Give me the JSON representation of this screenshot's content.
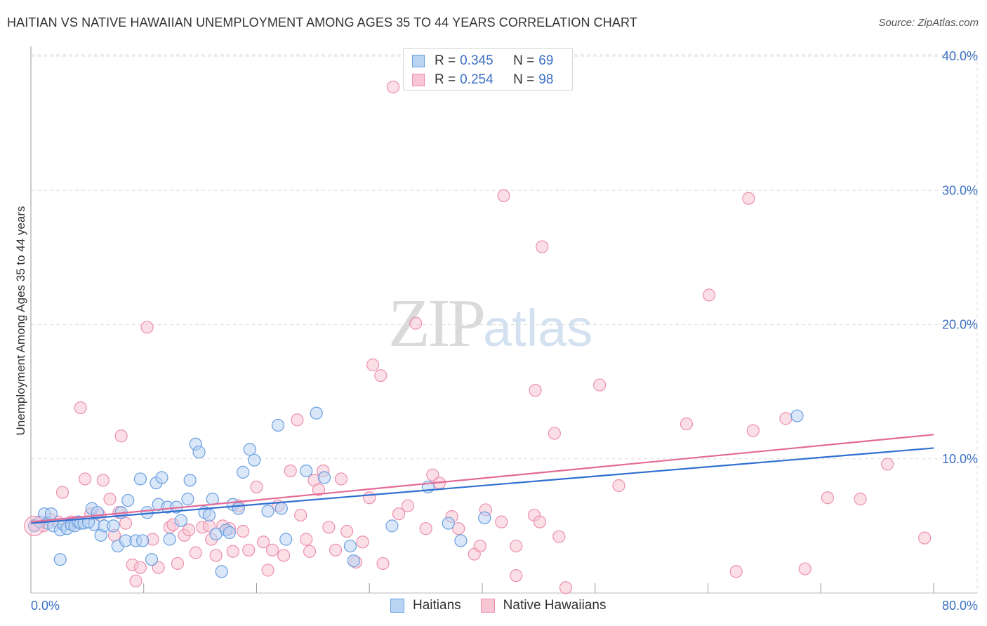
{
  "header": {
    "title": "HAITIAN VS NATIVE HAWAIIAN UNEMPLOYMENT AMONG AGES 35 TO 44 YEARS CORRELATION CHART",
    "source": "Source: ZipAtlas.com"
  },
  "watermark": {
    "zip": "ZIP",
    "atlas": "atlas"
  },
  "stats": {
    "rows": [
      {
        "r_label": "R =",
        "r_value": "0.345",
        "n_label": "N =",
        "n_value": "69"
      },
      {
        "r_label": "R =",
        "r_value": "0.254",
        "n_label": "N =",
        "n_value": "98"
      }
    ]
  },
  "legend": {
    "items": [
      "Haitians",
      "Native Hawaiians"
    ]
  },
  "colors": {
    "haitians_fill": "#b9d3f3",
    "haitians_stroke": "#6a9fe0",
    "haitians_line": "#2f6fd1",
    "hawaiians_fill": "#f8c5d4",
    "hawaiians_stroke": "#ec8fad",
    "hawaiians_line": "#e36a96",
    "tick_text": "#3a6fc4",
    "grid": "#dddddd"
  },
  "chart_data": {
    "type": "scatter",
    "title": "HAITIAN VS NATIVE HAWAIIAN UNEMPLOYMENT AMONG AGES 35 TO 44 YEARS CORRELATION CHART",
    "xlabel": "",
    "ylabel": "Unemployment Among Ages 35 to 44 years",
    "xlim": [
      0,
      80
    ],
    "ylim": [
      0,
      41
    ],
    "x_tick_labels": [
      "0.0%",
      "80.0%"
    ],
    "y_ticks": [
      10,
      20,
      30,
      40
    ],
    "y_tick_labels": [
      "10.0%",
      "20.0%",
      "30.0%",
      "40.0%"
    ],
    "grid": true,
    "legend_position": "bottom-center",
    "series": [
      {
        "name": "Haitians",
        "r": 0.345,
        "n": 69,
        "trend": {
          "x": [
            0,
            80
          ],
          "y": [
            5.2,
            10.8
          ]
        },
        "points": [
          [
            0.3,
            5.0
          ],
          [
            0.8,
            5.3
          ],
          [
            1.2,
            5.9
          ],
          [
            1.5,
            5.2
          ],
          [
            1.8,
            5.9
          ],
          [
            2.0,
            5.0
          ],
          [
            2.6,
            4.7
          ],
          [
            2.9,
            5.1
          ],
          [
            3.2,
            4.8
          ],
          [
            3.6,
            5.1
          ],
          [
            3.9,
            5.0
          ],
          [
            4.2,
            5.3
          ],
          [
            4.4,
            5.2
          ],
          [
            4.7,
            5.2
          ],
          [
            5.4,
            6.3
          ],
          [
            5.6,
            5.1
          ],
          [
            5.9,
            6.0
          ],
          [
            6.2,
            4.3
          ],
          [
            6.5,
            5.0
          ],
          [
            7.3,
            5.0
          ],
          [
            7.7,
            3.5
          ],
          [
            8.0,
            6.0
          ],
          [
            8.4,
            3.9
          ],
          [
            8.6,
            6.9
          ],
          [
            9.3,
            3.9
          ],
          [
            9.7,
            8.5
          ],
          [
            9.9,
            3.9
          ],
          [
            10.3,
            6.0
          ],
          [
            10.7,
            2.5
          ],
          [
            11.1,
            8.2
          ],
          [
            11.3,
            6.6
          ],
          [
            11.6,
            8.6
          ],
          [
            12.1,
            6.4
          ],
          [
            12.3,
            4.0
          ],
          [
            12.9,
            6.4
          ],
          [
            13.3,
            5.4
          ],
          [
            13.9,
            7.0
          ],
          [
            14.1,
            8.4
          ],
          [
            14.6,
            11.1
          ],
          [
            14.9,
            10.5
          ],
          [
            15.4,
            6.0
          ],
          [
            15.8,
            5.8
          ],
          [
            16.1,
            7.0
          ],
          [
            16.4,
            4.4
          ],
          [
            16.9,
            1.6
          ],
          [
            17.3,
            4.7
          ],
          [
            17.6,
            4.5
          ],
          [
            17.9,
            6.6
          ],
          [
            18.4,
            6.3
          ],
          [
            18.8,
            9.0
          ],
          [
            19.4,
            10.7
          ],
          [
            19.8,
            9.9
          ],
          [
            21.0,
            6.1
          ],
          [
            21.9,
            12.5
          ],
          [
            22.2,
            6.3
          ],
          [
            22.6,
            4.0
          ],
          [
            24.4,
            9.1
          ],
          [
            25.3,
            13.4
          ],
          [
            26.0,
            8.6
          ],
          [
            28.3,
            3.5
          ],
          [
            28.6,
            2.4
          ],
          [
            32.0,
            5.0
          ],
          [
            35.2,
            7.9
          ],
          [
            37.0,
            5.2
          ],
          [
            38.1,
            3.9
          ],
          [
            40.2,
            5.6
          ],
          [
            67.9,
            13.2
          ],
          [
            2.6,
            2.5
          ],
          [
            5.1,
            5.3
          ]
        ]
      },
      {
        "name": "Native Hawaiians",
        "r": 0.254,
        "n": 98,
        "trend": {
          "x": [
            0,
            80
          ],
          "y": [
            5.3,
            11.8
          ]
        },
        "points": [
          [
            0.4,
            5.1
          ],
          [
            1.1,
            5.0
          ],
          [
            1.7,
            5.5
          ],
          [
            2.4,
            5.3
          ],
          [
            2.8,
            7.5
          ],
          [
            3.6,
            5.3
          ],
          [
            4.4,
            13.8
          ],
          [
            4.8,
            8.5
          ],
          [
            5.3,
            5.9
          ],
          [
            6.1,
            5.8
          ],
          [
            6.4,
            8.4
          ],
          [
            7.0,
            7.0
          ],
          [
            7.4,
            4.3
          ],
          [
            7.8,
            6.0
          ],
          [
            8.0,
            11.7
          ],
          [
            8.4,
            5.2
          ],
          [
            9.0,
            2.1
          ],
          [
            9.3,
            0.9
          ],
          [
            9.7,
            1.9
          ],
          [
            10.3,
            19.8
          ],
          [
            10.8,
            4.0
          ],
          [
            11.3,
            1.9
          ],
          [
            12.3,
            4.9
          ],
          [
            12.6,
            5.1
          ],
          [
            13.0,
            2.2
          ],
          [
            13.6,
            4.3
          ],
          [
            14.0,
            4.7
          ],
          [
            14.6,
            3.0
          ],
          [
            15.2,
            4.9
          ],
          [
            15.8,
            5.0
          ],
          [
            16.0,
            4.0
          ],
          [
            16.4,
            2.8
          ],
          [
            17.0,
            5.0
          ],
          [
            17.6,
            4.8
          ],
          [
            17.9,
            3.1
          ],
          [
            18.4,
            6.5
          ],
          [
            18.8,
            4.6
          ],
          [
            19.3,
            3.2
          ],
          [
            20.0,
            7.9
          ],
          [
            20.6,
            3.8
          ],
          [
            21.0,
            1.7
          ],
          [
            21.4,
            3.2
          ],
          [
            21.9,
            6.5
          ],
          [
            22.4,
            2.8
          ],
          [
            23.0,
            9.1
          ],
          [
            23.6,
            12.9
          ],
          [
            23.9,
            5.8
          ],
          [
            24.4,
            4.0
          ],
          [
            24.7,
            3.1
          ],
          [
            25.1,
            8.4
          ],
          [
            25.5,
            7.7
          ],
          [
            25.9,
            9.1
          ],
          [
            26.4,
            4.9
          ],
          [
            27.0,
            3.2
          ],
          [
            27.5,
            8.5
          ],
          [
            28.0,
            4.6
          ],
          [
            28.8,
            2.3
          ],
          [
            29.4,
            3.8
          ],
          [
            30.0,
            7.1
          ],
          [
            30.3,
            17.0
          ],
          [
            31.0,
            16.2
          ],
          [
            31.2,
            2.2
          ],
          [
            32.1,
            37.7
          ],
          [
            32.6,
            5.9
          ],
          [
            33.4,
            6.5
          ],
          [
            34.1,
            20.1
          ],
          [
            35.0,
            4.8
          ],
          [
            35.6,
            8.8
          ],
          [
            36.2,
            8.2
          ],
          [
            37.3,
            5.7
          ],
          [
            37.9,
            4.8
          ],
          [
            39.3,
            2.9
          ],
          [
            39.8,
            3.5
          ],
          [
            40.3,
            6.2
          ],
          [
            41.7,
            5.3
          ],
          [
            41.9,
            29.6
          ],
          [
            43.0,
            3.5
          ],
          [
            43.0,
            1.3
          ],
          [
            44.6,
            5.8
          ],
          [
            44.7,
            15.1
          ],
          [
            45.1,
            5.3
          ],
          [
            45.3,
            25.8
          ],
          [
            46.4,
            11.9
          ],
          [
            46.8,
            4.2
          ],
          [
            47.4,
            0.4
          ],
          [
            50.4,
            15.5
          ],
          [
            52.1,
            8.0
          ],
          [
            58.1,
            12.6
          ],
          [
            60.1,
            22.2
          ],
          [
            62.5,
            1.6
          ],
          [
            63.6,
            29.4
          ],
          [
            64.0,
            12.1
          ],
          [
            66.9,
            13.0
          ],
          [
            68.6,
            1.8
          ],
          [
            70.6,
            7.1
          ],
          [
            73.5,
            7.0
          ],
          [
            75.9,
            9.6
          ],
          [
            79.2,
            4.1
          ]
        ]
      }
    ]
  }
}
